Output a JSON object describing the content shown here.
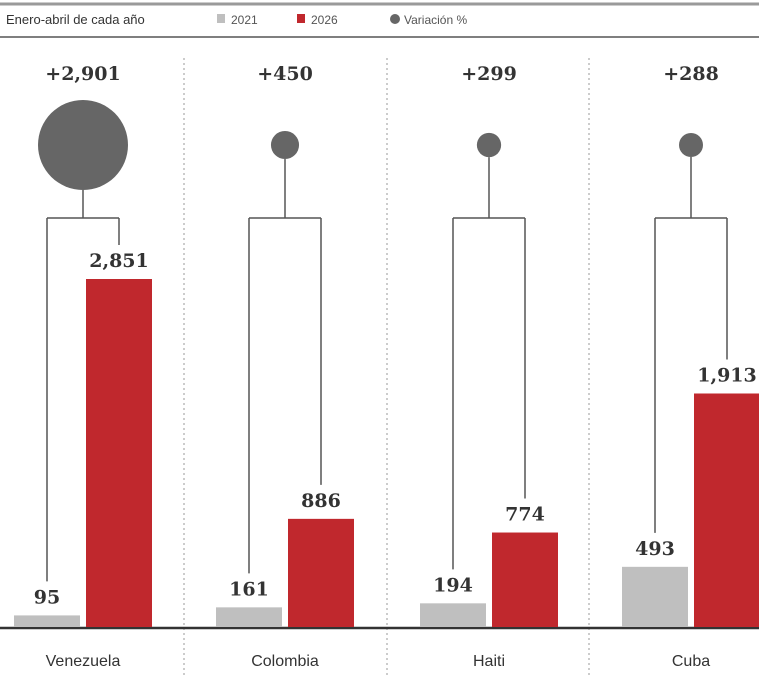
{
  "chart_data": {
    "type": "bar",
    "subtitle": "Enero-abril de cada año",
    "legend": [
      {
        "label": "2021",
        "color": "#bfbfbf",
        "marker": "square"
      },
      {
        "label": "2026",
        "color": "#c0282d",
        "marker": "square"
      },
      {
        "label": "Variación %",
        "color": "#666666",
        "marker": "circle"
      }
    ],
    "categories": [
      "Venezuela",
      "Colombia",
      "Haiti",
      "Cuba"
    ],
    "series": [
      {
        "name": "2021",
        "values": [
          95,
          161,
          194,
          493
        ],
        "labels": [
          "95",
          "161",
          "194",
          "493"
        ],
        "color": "#bfbfbf"
      },
      {
        "name": "2026",
        "values": [
          2851,
          886,
          774,
          1913
        ],
        "labels": [
          "2,851",
          "886",
          "774",
          "1,913"
        ],
        "color": "#c0282d"
      }
    ],
    "variation": {
      "name": "Variación %",
      "values": [
        2901,
        450,
        299,
        288
      ],
      "labels": [
        "+2,901",
        "+450",
        "+299",
        "+288"
      ],
      "color": "#666666"
    },
    "ylim": [
      0,
      2851
    ],
    "grid": false
  }
}
